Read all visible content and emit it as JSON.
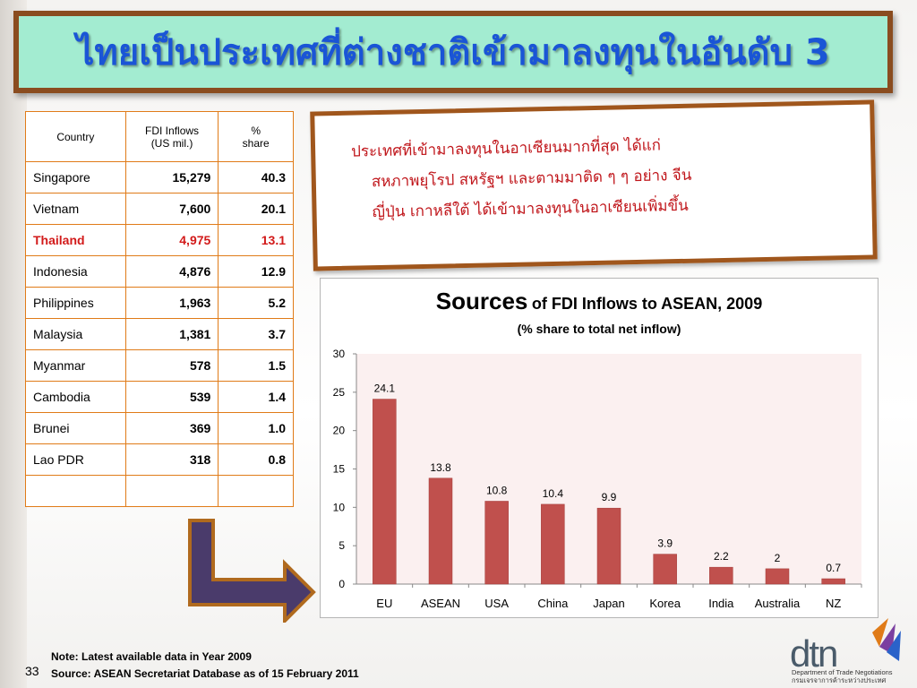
{
  "title": "ไทยเป็นประเทศที่ต่างชาติเข้ามาลงทุนในอันดับ 3",
  "table": {
    "headers": [
      "Country",
      "FDI Inflows\n(US mil.)",
      "%\nshare"
    ],
    "header_country": "Country",
    "header_fdi_line1": "FDI Inflows",
    "header_fdi_line2": "(US mil.)",
    "header_share_line1": "%",
    "header_share_line2": "share",
    "rows": [
      {
        "country": "Singapore",
        "fdi": "15,279",
        "share": "40.3"
      },
      {
        "country": "Vietnam",
        "fdi": "7,600",
        "share": "20.1"
      },
      {
        "country": "Thailand",
        "fdi": "4,975",
        "share": "13.1"
      },
      {
        "country": "Indonesia",
        "fdi": "4,876",
        "share": "12.9"
      },
      {
        "country": "Philippines",
        "fdi": "1,963",
        "share": "5.2"
      },
      {
        "country": "Malaysia",
        "fdi": "1,381",
        "share": "3.7"
      },
      {
        "country": "Myanmar",
        "fdi": "578",
        "share": "1.5"
      },
      {
        "country": "Cambodia",
        "fdi": "539",
        "share": "1.4"
      },
      {
        "country": "Brunei",
        "fdi": "369",
        "share": "1.0"
      },
      {
        "country": "Lao PDR",
        "fdi": "318",
        "share": "0.8"
      }
    ],
    "highlight_country": "Thailand",
    "highlight_color": "#d21a1a",
    "border_color": "#e07b18"
  },
  "callout": {
    "line1": "ประเทศที่เข้ามาลงทุนในอาเซียนมากที่สุด ได้แก่",
    "line2": "สหภาพยุโรป สหรัฐฯ และตามมาติด ๆ ๆ อย่าง จีน",
    "line3": "ญี่ปุ่น เกาหลีใต้ ได้เข้ามาลงทุนในอาเซียนเพิ่มขึ้น",
    "text_color": "#c0161b"
  },
  "chart_data": {
    "type": "bar",
    "title_big": "Sources",
    "title_rest": "of FDI Inflows to ASEAN, 2009",
    "subtitle": "(% share to total net inflow)",
    "categories": [
      "EU",
      "ASEAN",
      "USA",
      "China",
      "Japan",
      "Korea",
      "India",
      "Australia",
      "NZ"
    ],
    "values": [
      24.1,
      13.8,
      10.8,
      10.4,
      9.9,
      3.9,
      2.2,
      2,
      0.7
    ],
    "value_labels": [
      "24.1",
      "13.8",
      "10.8",
      "10.4",
      "9.9",
      "3.9",
      "2.2",
      "2",
      "0.7"
    ],
    "ylim": [
      0,
      30
    ],
    "yticks": [
      "0",
      "5",
      "10",
      "15",
      "20",
      "25",
      "30"
    ],
    "grid": false,
    "bar_color": "#c0504d",
    "plot_background": "#fbf0f0"
  },
  "footer": {
    "note": "Note:  Latest available data in Year 2009",
    "source": "Source: ASEAN Secretariat Database as of 15 February 2011",
    "page_number": "33"
  },
  "logo": {
    "text": "dtn",
    "subtitle_en": "Department of Trade Negotiations",
    "subtitle_th": "กรมเจรจาการค้าระหว่างประเทศ"
  },
  "colors": {
    "title_bg": "#a3ecd1",
    "title_text": "#1a55d6",
    "title_border": "#8a4c1f",
    "arrow_fill": "#4a3b6b",
    "arrow_border": "#b06a1e"
  }
}
